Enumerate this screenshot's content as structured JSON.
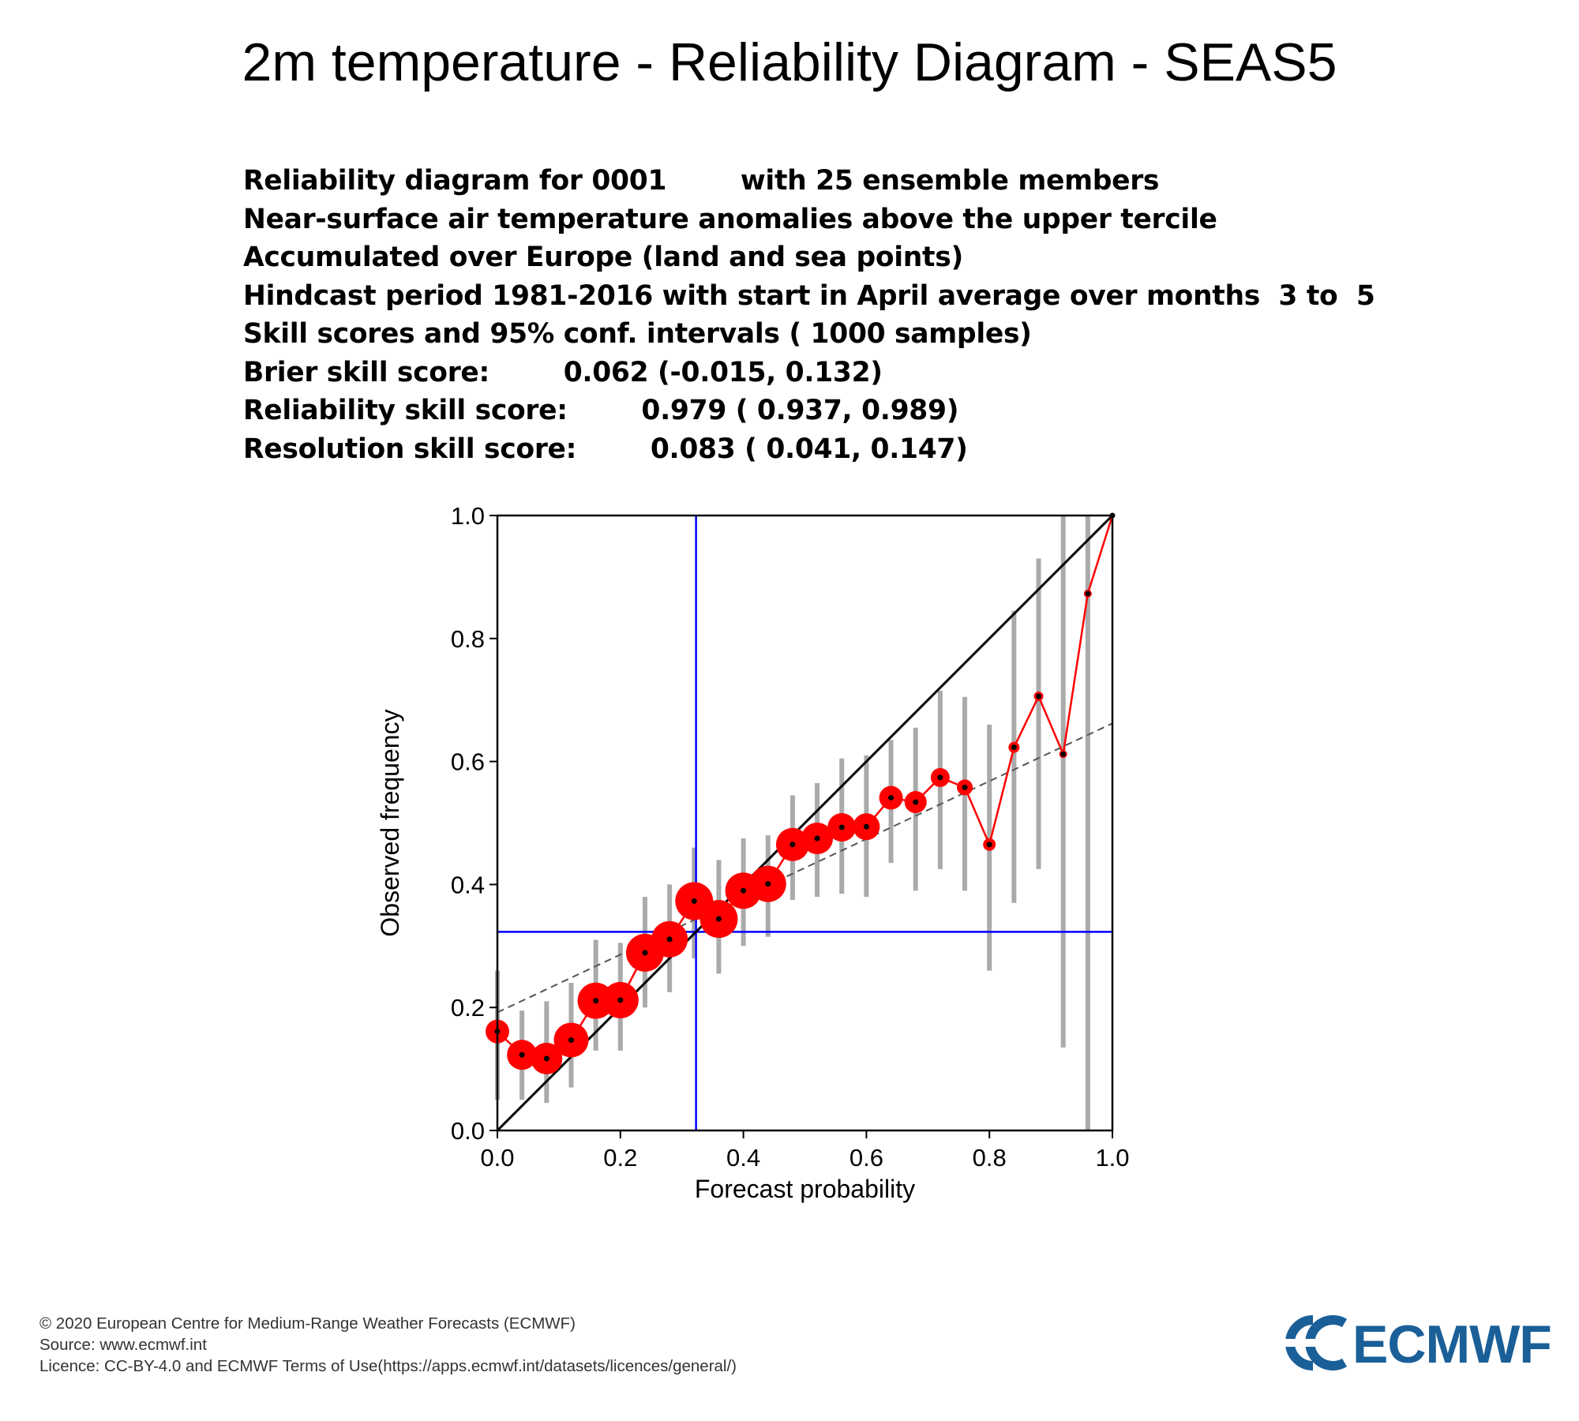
{
  "title": "2m temperature - Reliability Diagram - SEAS5",
  "header_lines": [
    "Reliability diagram for 0001        with 25 ensemble members",
    "Near-surface air temperature anomalies above the upper tercile",
    "Accumulated over Europe (land and sea points)",
    "Hindcast period 1981-2016 with start in April average over months  3 to  5",
    "Skill scores and 95% conf. intervals ( 1000 samples)",
    "Brier skill score:        0.062 (-0.015, 0.132)",
    "Reliability skill score:        0.979 ( 0.937, 0.989)",
    "Resolution skill score:        0.083 ( 0.041, 0.147)"
  ],
  "footer_lines": [
    "© 2020 European Centre for Medium-Range Weather Forecasts (ECMWF)",
    "Source: www.ecmwf.int",
    "Licence: CC-BY-4.0 and ECMWF Terms of Use(https://apps.ecmwf.int/datasets/licences/general/)"
  ],
  "logo_text": "ECMWF",
  "chart_data": {
    "type": "scatter",
    "title": "",
    "xlabel": "Forecast probability",
    "ylabel": "Observed frequency",
    "xlim": [
      0,
      1
    ],
    "ylim": [
      0,
      1
    ],
    "x_ticks": [
      "0.0",
      "0.2",
      "0.4",
      "0.6",
      "0.8",
      "1.0"
    ],
    "y_ticks": [
      "0.0",
      "0.2",
      "0.4",
      "0.6",
      "0.8",
      "1.0"
    ],
    "climatology": 0.323,
    "diagonal": true,
    "regression_line": {
      "from": [
        0,
        0.192
      ],
      "to": [
        1,
        0.662
      ]
    },
    "points": [
      {
        "x": 0.0,
        "y": 0.161,
        "ci": [
          0.05,
          0.26
        ],
        "size": 0.55
      },
      {
        "x": 0.04,
        "y": 0.123,
        "ci": [
          0.05,
          0.195
        ],
        "size": 0.75
      },
      {
        "x": 0.08,
        "y": 0.117,
        "ci": [
          0.045,
          0.21
        ],
        "size": 0.8
      },
      {
        "x": 0.12,
        "y": 0.147,
        "ci": [
          0.07,
          0.24
        ],
        "size": 0.9
      },
      {
        "x": 0.16,
        "y": 0.211,
        "ci": [
          0.13,
          0.31
        ],
        "size": 0.95
      },
      {
        "x": 0.2,
        "y": 0.212,
        "ci": [
          0.13,
          0.305
        ],
        "size": 0.95
      },
      {
        "x": 0.24,
        "y": 0.289,
        "ci": [
          0.2,
          0.38
        ],
        "size": 1.0
      },
      {
        "x": 0.28,
        "y": 0.311,
        "ci": [
          0.225,
          0.4
        ],
        "size": 0.95
      },
      {
        "x": 0.32,
        "y": 0.373,
        "ci": [
          0.28,
          0.46
        ],
        "size": 1.0
      },
      {
        "x": 0.36,
        "y": 0.344,
        "ci": [
          0.255,
          0.44
        ],
        "size": 1.0
      },
      {
        "x": 0.4,
        "y": 0.39,
        "ci": [
          0.3,
          0.475
        ],
        "size": 0.95
      },
      {
        "x": 0.44,
        "y": 0.401,
        "ci": [
          0.315,
          0.48
        ],
        "size": 0.95
      },
      {
        "x": 0.48,
        "y": 0.465,
        "ci": [
          0.375,
          0.545
        ],
        "size": 0.85
      },
      {
        "x": 0.52,
        "y": 0.475,
        "ci": [
          0.38,
          0.565
        ],
        "size": 0.8
      },
      {
        "x": 0.56,
        "y": 0.493,
        "ci": [
          0.385,
          0.605
        ],
        "size": 0.7
      },
      {
        "x": 0.6,
        "y": 0.494,
        "ci": [
          0.38,
          0.61
        ],
        "size": 0.65
      },
      {
        "x": 0.64,
        "y": 0.541,
        "ci": [
          0.435,
          0.635
        ],
        "size": 0.55
      },
      {
        "x": 0.68,
        "y": 0.534,
        "ci": [
          0.39,
          0.655
        ],
        "size": 0.5
      },
      {
        "x": 0.72,
        "y": 0.574,
        "ci": [
          0.425,
          0.715
        ],
        "size": 0.4
      },
      {
        "x": 0.76,
        "y": 0.558,
        "ci": [
          0.39,
          0.705
        ],
        "size": 0.3
      },
      {
        "x": 0.8,
        "y": 0.465,
        "ci": [
          0.26,
          0.66
        ],
        "size": 0.2
      },
      {
        "x": 0.84,
        "y": 0.623,
        "ci": [
          0.37,
          0.845
        ],
        "size": 0.15
      },
      {
        "x": 0.88,
        "y": 0.706,
        "ci": [
          0.425,
          0.93
        ],
        "size": 0.1
      },
      {
        "x": 0.92,
        "y": 0.612,
        "ci": [
          0.135,
          1.0
        ],
        "size": 0.05
      },
      {
        "x": 0.96,
        "y": 0.873,
        "ci": [
          0.0,
          1.0
        ],
        "size": 0.05
      },
      {
        "x": 1.0,
        "y": 1.0,
        "ci": [
          1.0,
          1.0
        ],
        "size": 0.0
      }
    ],
    "colors": {
      "line": "#ff0000",
      "marker": "#ff0000",
      "ci": "#aaaaaa",
      "climatology": "#0000ff",
      "diagonal": "#000000",
      "regression": "#555555"
    },
    "grid": false,
    "legend": "none"
  }
}
